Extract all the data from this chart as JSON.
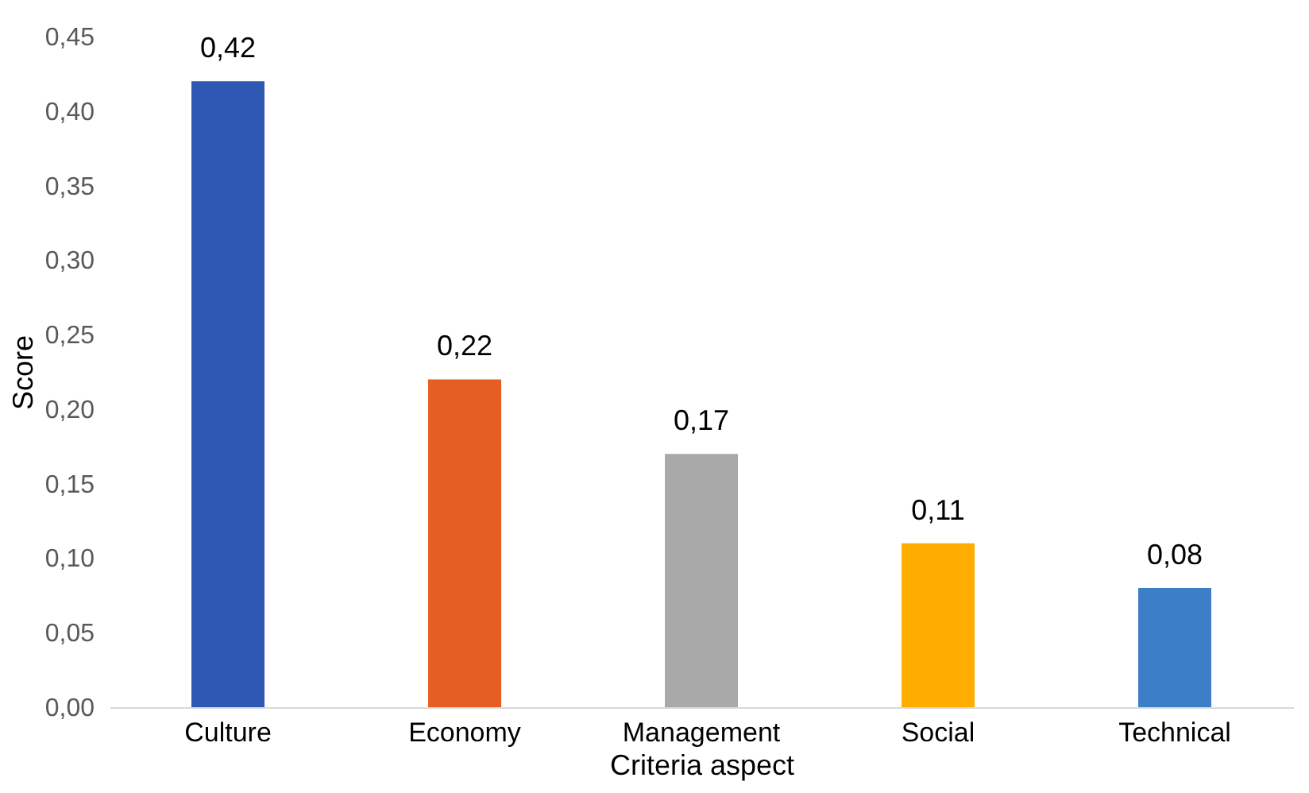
{
  "chart_data": {
    "type": "bar",
    "xlabel": "Criteria aspect",
    "ylabel": "Score",
    "categories": [
      "Culture",
      "Economy",
      "Management",
      "Social",
      "Technical"
    ],
    "values": [
      0.42,
      0.22,
      0.17,
      0.11,
      0.08
    ],
    "value_labels": [
      "0,42",
      "0,22",
      "0,17",
      "0,11",
      "0,08"
    ],
    "colors": [
      "#2e58b4",
      "#e65f22",
      "#a9a9a9",
      "#ffae00",
      "#3d7ec8"
    ],
    "ylim": [
      0,
      0.45
    ],
    "yticks": [
      {
        "value": 0,
        "label": "0,00"
      },
      {
        "value": 0.05,
        "label": "0,05"
      },
      {
        "value": 0.1,
        "label": "0,10"
      },
      {
        "value": 0.15,
        "label": "0,15"
      },
      {
        "value": 0.2,
        "label": "0,20"
      },
      {
        "value": 0.25,
        "label": "0,25"
      },
      {
        "value": 0.3,
        "label": "0,30"
      },
      {
        "value": 0.35,
        "label": "0,35"
      },
      {
        "value": 0.4,
        "label": "0,40"
      },
      {
        "value": 0.45,
        "label": "0,45"
      }
    ],
    "grid": false,
    "legend": false
  }
}
